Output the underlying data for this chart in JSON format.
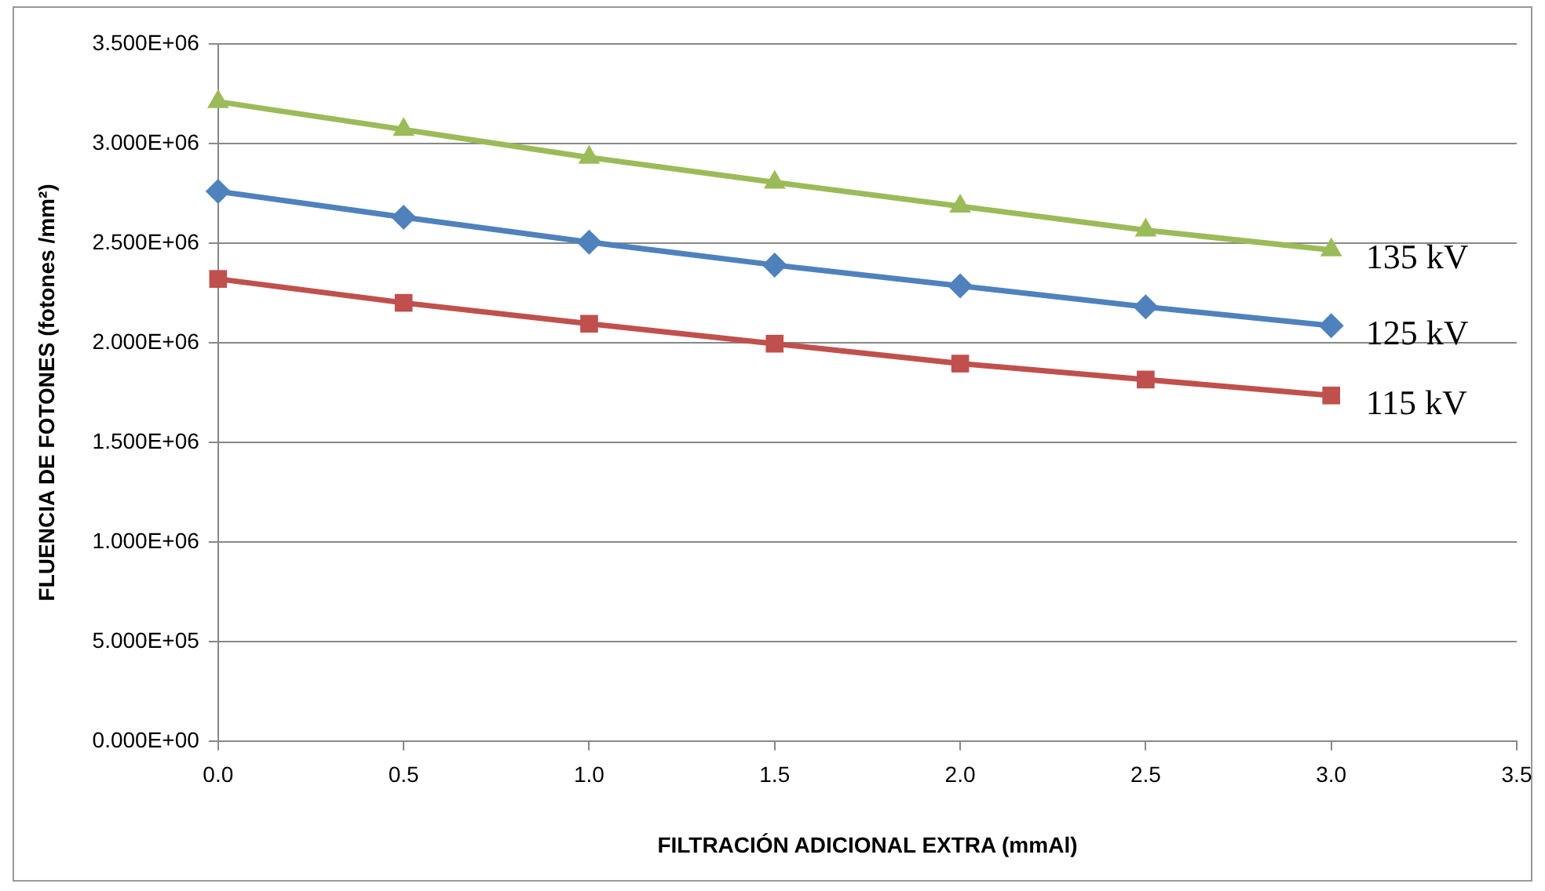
{
  "chart_data": {
    "type": "line",
    "xlabel": "FILTRACIÓN ADICIONAL EXTRA (mmAl)",
    "ylabel": "FLUENCIA DE FOTONES (fotones /mm²)",
    "x": [
      0,
      0.5,
      1,
      1.5,
      2,
      2.5,
      3
    ],
    "series": [
      {
        "name": "135 kV",
        "color": "#9bbb59",
        "marker": "triangle",
        "values": [
          3210000,
          3070000,
          2930000,
          2805000,
          2685000,
          2565000,
          2465000
        ]
      },
      {
        "name": "125 kV",
        "color": "#4f81bd",
        "marker": "diamond",
        "values": [
          2760000,
          2630000,
          2505000,
          2390000,
          2285000,
          2180000,
          2085000
        ]
      },
      {
        "name": "115 kV",
        "color": "#c0504d",
        "marker": "square",
        "values": [
          2320000,
          2200000,
          2095000,
          1995000,
          1895000,
          1815000,
          1735000
        ]
      }
    ],
    "xlim": [
      0,
      3.5
    ],
    "xticks": [
      {
        "value": 0,
        "label": "0.0"
      },
      {
        "value": 0.5,
        "label": "0.5"
      },
      {
        "value": 1,
        "label": "1.0"
      },
      {
        "value": 1.5,
        "label": "1.5"
      },
      {
        "value": 2,
        "label": "2.0"
      },
      {
        "value": 2.5,
        "label": "2.5"
      },
      {
        "value": 3,
        "label": "3.0"
      },
      {
        "value": 3.5,
        "label": "3.5"
      }
    ],
    "ylim": [
      0,
      3500000
    ],
    "yticks": [
      {
        "value": 0,
        "label": "0.000E+00"
      },
      {
        "value": 500000,
        "label": "5.000E+05"
      },
      {
        "value": 1000000,
        "label": "1.000E+06"
      },
      {
        "value": 1500000,
        "label": "1.500E+06"
      },
      {
        "value": 2000000,
        "label": "2.000E+06"
      },
      {
        "value": 2500000,
        "label": "2.500E+06"
      },
      {
        "value": 3000000,
        "label": "3.000E+06"
      },
      {
        "value": 3500000,
        "label": "3.500E+06"
      }
    ],
    "grid": "y",
    "legend": false,
    "line_style": "solid"
  }
}
